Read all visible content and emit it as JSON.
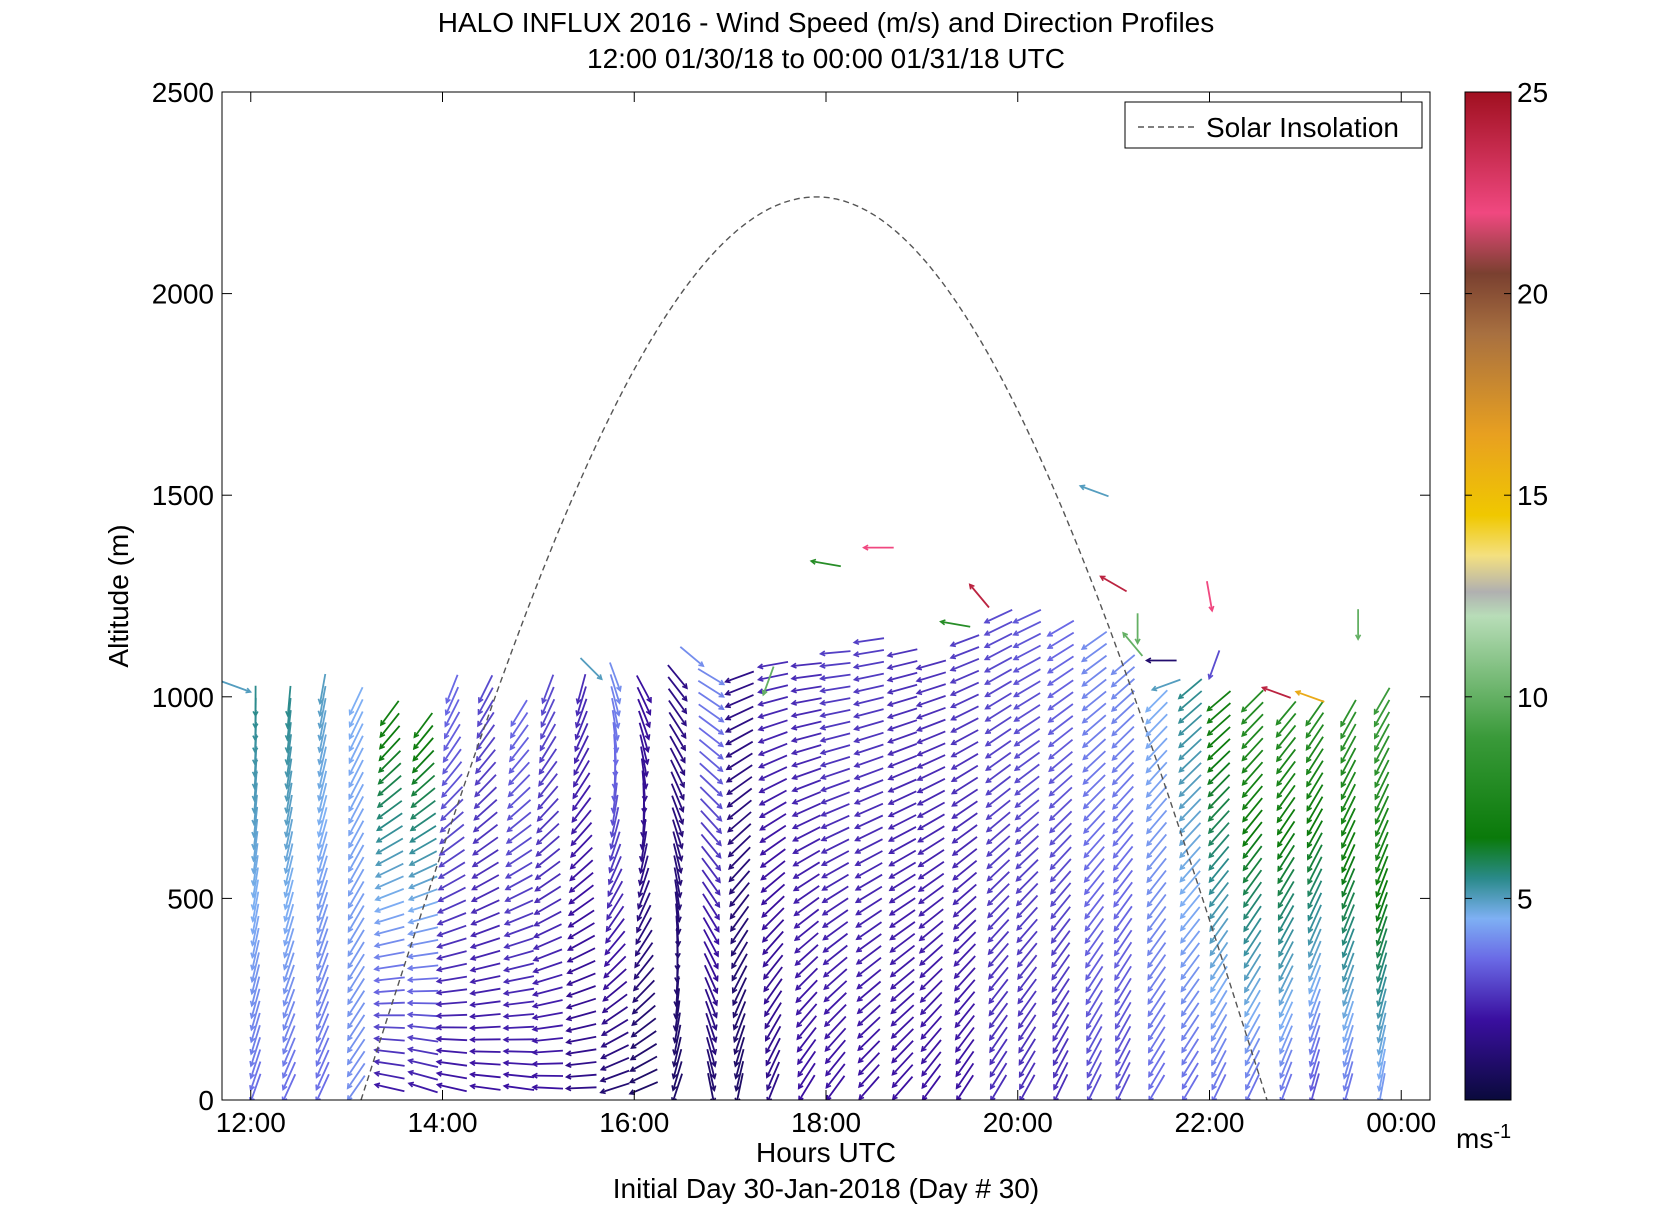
{
  "chart_data": {
    "type": "quiver",
    "title": "HALO INFLUX 2016 - Wind Speed (m/s) and Direction Profiles",
    "subtitle": "12:00 01/30/18 to 00:00 01/31/18  UTC",
    "xlabel": "Hours UTC",
    "xlabel2": "Initial Day 30-Jan-2018 (Day # 30)",
    "ylabel": "Altitude (m)",
    "xlim": [
      11.7,
      24.3
    ],
    "ylim": [
      0,
      2500
    ],
    "x_tick_values": [
      12,
      14,
      16,
      18,
      20,
      22,
      24
    ],
    "x_tick_labels": [
      "12:00",
      "14:00",
      "16:00",
      "18:00",
      "20:00",
      "22:00",
      "00:00"
    ],
    "y_tick_values": [
      0,
      500,
      1000,
      1500,
      2000,
      2500
    ],
    "y_tick_labels": [
      "0",
      "500",
      "1000",
      "1500",
      "2000",
      "2500"
    ],
    "legend": {
      "position": "top-right",
      "entries": [
        {
          "label": "Solar Insolation",
          "style": "dashed"
        }
      ]
    },
    "solar_insolation": {
      "start_hour": 13.15,
      "peak_hour": 17.9,
      "peak_altitude": 2240,
      "end_hour": 22.6,
      "color": "#555555"
    },
    "colorbar": {
      "min": 0,
      "max": 25,
      "tick_values": [
        5,
        10,
        15,
        20,
        25
      ],
      "tick_labels": [
        "5",
        "10",
        "15",
        "20",
        "25"
      ],
      "unit": "ms",
      "unit_exponent": "-1",
      "stops": [
        {
          "v": 0,
          "c": "#0a0a3c"
        },
        {
          "v": 2,
          "c": "#3a0fa0"
        },
        {
          "v": 3.5,
          "c": "#6a6ae6"
        },
        {
          "v": 4.5,
          "c": "#7eb0f4"
        },
        {
          "v": 5.5,
          "c": "#2a8a8a"
        },
        {
          "v": 6.5,
          "c": "#0a7a0a"
        },
        {
          "v": 9,
          "c": "#3a9a3a"
        },
        {
          "v": 12,
          "c": "#b8ddb8"
        },
        {
          "v": 12.6,
          "c": "#b0b0b0"
        },
        {
          "v": 13.5,
          "c": "#f4e080"
        },
        {
          "v": 14.5,
          "c": "#f0c800"
        },
        {
          "v": 16.5,
          "c": "#e8a020"
        },
        {
          "v": 19,
          "c": "#a87040"
        },
        {
          "v": 20.5,
          "c": "#7a4030"
        },
        {
          "v": 22,
          "c": "#f04880"
        },
        {
          "v": 25,
          "c": "#a01020"
        }
      ]
    },
    "profiles": [
      {
        "hour": 12.05,
        "top": 1000,
        "spd_low": 3.5,
        "spd_high": 5.5,
        "dir_low": 200,
        "dir_high": 180
      },
      {
        "hour": 12.4,
        "top": 1000,
        "spd_low": 3.5,
        "spd_high": 5.5,
        "dir_low": 205,
        "dir_high": 185
      },
      {
        "hour": 12.75,
        "top": 1040,
        "spd_low": 3.5,
        "spd_high": 5,
        "dir_low": 205,
        "dir_high": 190
      },
      {
        "hour": 13.1,
        "top": 1010,
        "spd_low": 4,
        "spd_high": 4.5,
        "dir_low": 215,
        "dir_high": 205
      },
      {
        "hour": 13.45,
        "top": 980,
        "spd_low": 2,
        "spd_high": 7,
        "dir_low": 285,
        "dir_high": 215
      },
      {
        "hour": 13.8,
        "top": 950,
        "spd_low": 2,
        "spd_high": 7,
        "dir_low": 290,
        "dir_high": 215
      },
      {
        "hour": 14.1,
        "top": 1040,
        "spd_low": 2,
        "spd_high": 3.5,
        "dir_low": 285,
        "dir_high": 200
      },
      {
        "hour": 14.45,
        "top": 1040,
        "spd_low": 2,
        "spd_high": 3,
        "dir_low": 280,
        "dir_high": 205
      },
      {
        "hour": 14.8,
        "top": 980,
        "spd_low": 2,
        "spd_high": 3.5,
        "dir_low": 280,
        "dir_high": 210
      },
      {
        "hour": 15.1,
        "top": 1030,
        "spd_low": 2,
        "spd_high": 3,
        "dir_low": 275,
        "dir_high": 200
      },
      {
        "hour": 15.45,
        "top": 1020,
        "spd_low": 1.5,
        "spd_high": 2.5,
        "dir_low": 270,
        "dir_high": 195
      },
      {
        "hour": 15.8,
        "top": 1050,
        "spd_low": 1,
        "spd_high": 4,
        "dir_low": 255,
        "dir_high": 160
      },
      {
        "hour": 16.1,
        "top": 1040,
        "spd_low": 0.8,
        "spd_high": 2,
        "dir_low": 250,
        "dir_high": 150
      },
      {
        "hour": 16.45,
        "top": 1060,
        "spd_low": 0.8,
        "spd_high": 1.5,
        "dir_low": 200,
        "dir_high": 140
      },
      {
        "hour": 16.8,
        "top": 1070,
        "spd_low": 0.8,
        "spd_high": 4,
        "dir_low": 170,
        "dir_high": 120
      },
      {
        "hour": 17.1,
        "top": 1050,
        "spd_low": 0.8,
        "spd_high": 1.5,
        "dir_low": 190,
        "dir_high": 250
      },
      {
        "hour": 17.45,
        "top": 1080,
        "spd_low": 1.5,
        "spd_high": 2.5,
        "dir_low": 200,
        "dir_high": 260
      },
      {
        "hour": 17.8,
        "top": 1100,
        "spd_low": 2,
        "spd_high": 2.5,
        "dir_low": 210,
        "dir_high": 265
      },
      {
        "hour": 18.1,
        "top": 1110,
        "spd_low": 2,
        "spd_high": 2.8,
        "dir_low": 215,
        "dir_high": 265
      },
      {
        "hour": 18.45,
        "top": 1150,
        "spd_low": 2,
        "spd_high": 2.8,
        "dir_low": 220,
        "dir_high": 262
      },
      {
        "hour": 18.8,
        "top": 1130,
        "spd_low": 2,
        "spd_high": 2.6,
        "dir_low": 220,
        "dir_high": 258
      },
      {
        "hour": 19.1,
        "top": 1100,
        "spd_low": 2,
        "spd_high": 2.6,
        "dir_low": 215,
        "dir_high": 255
      },
      {
        "hour": 19.45,
        "top": 1150,
        "spd_low": 2,
        "spd_high": 2.8,
        "dir_low": 212,
        "dir_high": 250
      },
      {
        "hour": 19.8,
        "top": 1200,
        "spd_low": 2.5,
        "spd_high": 3,
        "dir_low": 210,
        "dir_high": 245
      },
      {
        "hour": 20.1,
        "top": 1200,
        "spd_low": 2.5,
        "spd_high": 3.2,
        "dir_low": 208,
        "dir_high": 245
      },
      {
        "hour": 20.45,
        "top": 1180,
        "spd_low": 2.5,
        "spd_high": 3.5,
        "dir_low": 205,
        "dir_high": 240
      },
      {
        "hour": 20.8,
        "top": 1150,
        "spd_low": 3,
        "spd_high": 4,
        "dir_low": 205,
        "dir_high": 235
      },
      {
        "hour": 21.1,
        "top": 1090,
        "spd_low": 3,
        "spd_high": 4,
        "dir_low": 205,
        "dir_high": 230
      },
      {
        "hour": 21.45,
        "top": 1000,
        "spd_low": 3.5,
        "spd_high": 4.5,
        "dir_low": 210,
        "dir_high": 225
      },
      {
        "hour": 21.8,
        "top": 1030,
        "spd_low": 3.5,
        "spd_high": 5.5,
        "dir_low": 210,
        "dir_high": 230
      },
      {
        "hour": 22.1,
        "top": 1000,
        "spd_low": 3.5,
        "spd_high": 7,
        "dir_low": 205,
        "dir_high": 230
      },
      {
        "hour": 22.45,
        "top": 990,
        "spd_low": 3.5,
        "spd_high": 8,
        "dir_low": 205,
        "dir_high": 225
      },
      {
        "hour": 22.8,
        "top": 970,
        "spd_low": 3.5,
        "spd_high": 8,
        "dir_low": 200,
        "dir_high": 220
      },
      {
        "hour": 23.1,
        "top": 960,
        "spd_low": 3,
        "spd_high": 8,
        "dir_low": 195,
        "dir_high": 215
      },
      {
        "hour": 23.45,
        "top": 980,
        "spd_low": 3.5,
        "spd_high": 8.5,
        "dir_low": 195,
        "dir_high": 210
      },
      {
        "hour": 23.8,
        "top": 990,
        "spd_low": 4,
        "spd_high": 9,
        "dir_low": 190,
        "dir_high": 210
      }
    ],
    "isolated_vectors": [
      {
        "hour": 11.85,
        "alt": 1025,
        "spd": 5,
        "dir": 110
      },
      {
        "hour": 15.55,
        "alt": 1070,
        "spd": 5,
        "dir": 135
      },
      {
        "hour": 16.6,
        "alt": 1100,
        "spd": 4,
        "dir": 130
      },
      {
        "hour": 17.4,
        "alt": 1040,
        "spd": 10,
        "dir": 200
      },
      {
        "hour": 18.0,
        "alt": 1330,
        "spd": 8,
        "dir": 280
      },
      {
        "hour": 18.55,
        "alt": 1370,
        "spd": 22,
        "dir": 270
      },
      {
        "hour": 19.35,
        "alt": 1180,
        "spd": 8,
        "dir": 280
      },
      {
        "hour": 19.6,
        "alt": 1250,
        "spd": 24,
        "dir": 320
      },
      {
        "hour": 20.8,
        "alt": 1510,
        "spd": 5,
        "dir": 290
      },
      {
        "hour": 21.0,
        "alt": 1280,
        "spd": 24,
        "dir": 300
      },
      {
        "hour": 21.25,
        "alt": 1170,
        "spd": 10,
        "dir": 180
      },
      {
        "hour": 21.2,
        "alt": 1130,
        "spd": 10,
        "dir": 320
      },
      {
        "hour": 21.5,
        "alt": 1090,
        "spd": 1,
        "dir": 270
      },
      {
        "hour": 21.55,
        "alt": 1030,
        "spd": 5,
        "dir": 250
      },
      {
        "hour": 22.0,
        "alt": 1250,
        "spd": 22,
        "dir": 170
      },
      {
        "hour": 22.05,
        "alt": 1080,
        "spd": 3,
        "dir": 200
      },
      {
        "hour": 22.7,
        "alt": 1010,
        "spd": 24,
        "dir": 290
      },
      {
        "hour": 23.05,
        "alt": 1000,
        "spd": 16,
        "dir": 290
      },
      {
        "hour": 23.55,
        "alt": 1180,
        "spd": 10,
        "dir": 180
      }
    ]
  }
}
